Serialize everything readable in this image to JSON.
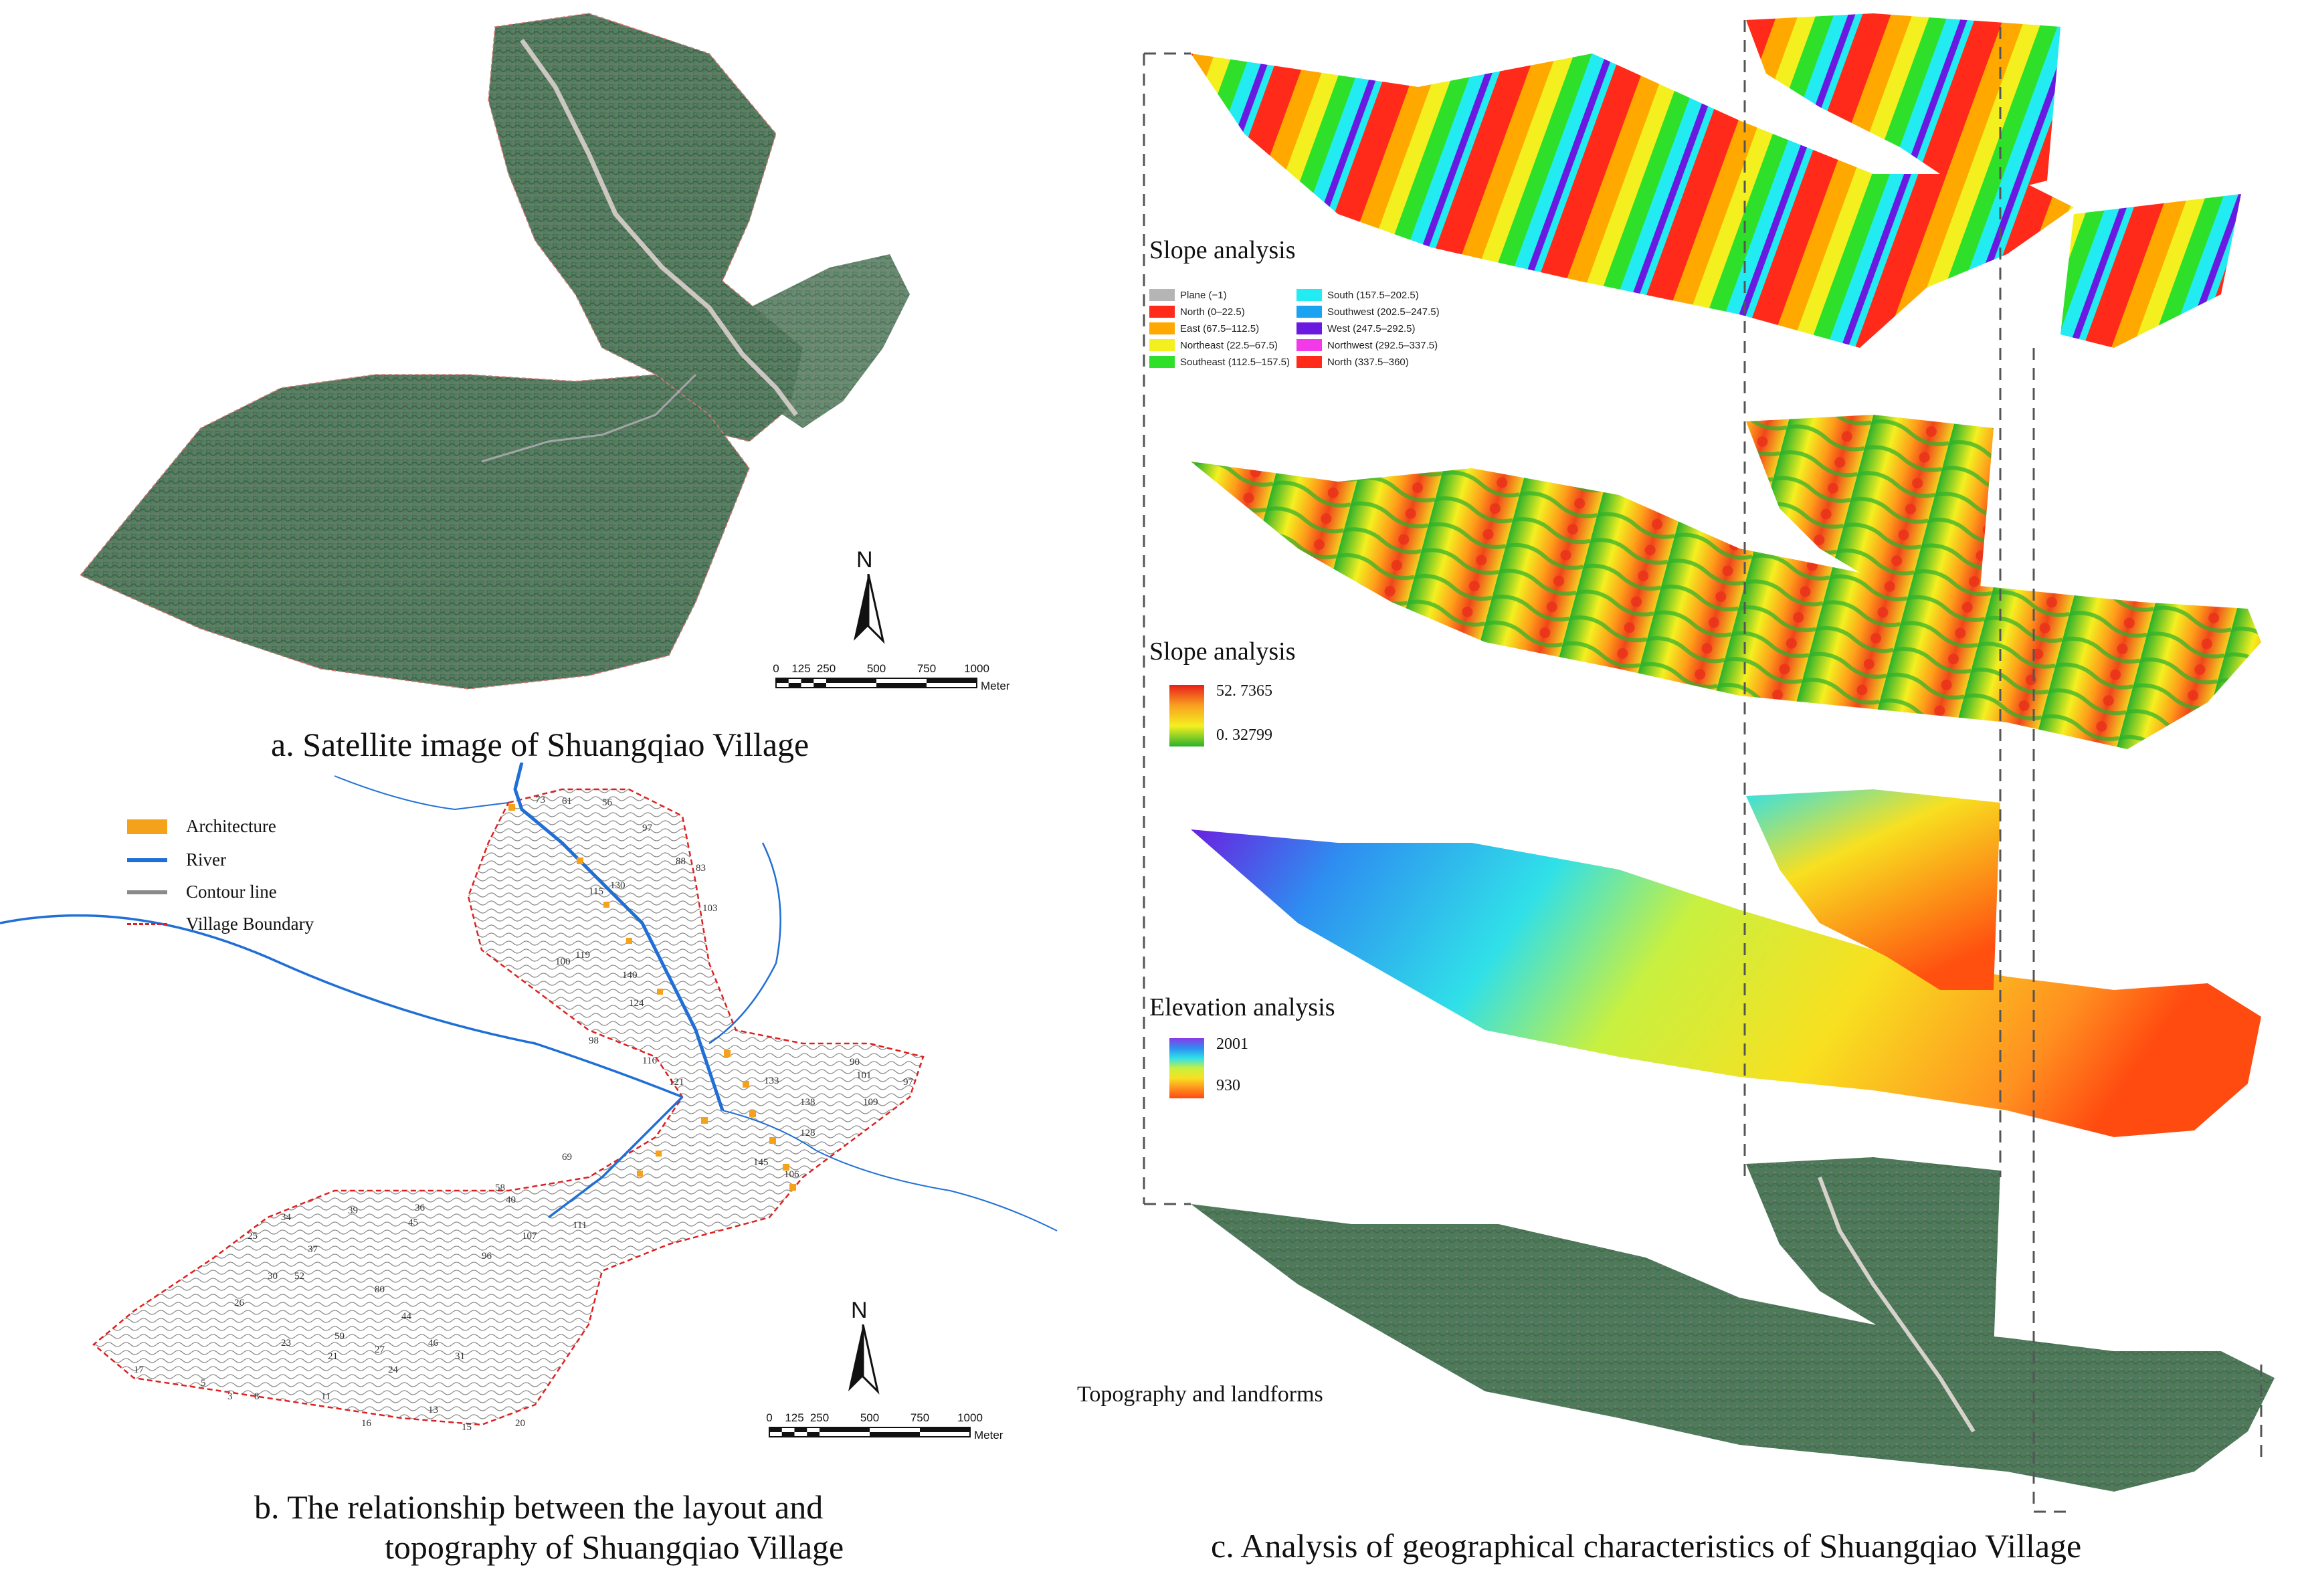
{
  "panel_a": {
    "caption": "a. Satellite image of Shuangqiao Village",
    "north_label": "N",
    "scale_labels": [
      "0",
      "125",
      "250",
      "500",
      "750",
      "1000"
    ],
    "scale_unit": "Meter"
  },
  "panel_b": {
    "caption_line1": "b. The relationship between the layout and",
    "caption_line2": "topography of Shuangqiao Village",
    "legend": [
      {
        "label": "Architecture",
        "color": "#f5a21b"
      },
      {
        "label": "River",
        "color": "#1f6fd6"
      },
      {
        "label": "Contour line",
        "color": "#8a8a8a"
      },
      {
        "label": "Village Boundary",
        "color": "#e02020"
      }
    ],
    "north_label": "N",
    "scale_labels": [
      "0",
      "125",
      "250",
      "500",
      "750",
      "1000"
    ],
    "scale_unit": "Meter",
    "contour_labels": [
      "73",
      "61",
      "56",
      "97",
      "103",
      "88",
      "83",
      "115",
      "130",
      "119",
      "100",
      "124",
      "140",
      "98",
      "116",
      "121",
      "90",
      "101",
      "109",
      "133",
      "128",
      "97",
      "145",
      "138",
      "106",
      "111",
      "107",
      "96",
      "69",
      "58",
      "40",
      "39",
      "36",
      "45",
      "34",
      "37",
      "30",
      "26",
      "23",
      "20",
      "16",
      "13",
      "15",
      "11",
      "8",
      "5",
      "3",
      "25",
      "52",
      "59",
      "80",
      "44",
      "21",
      "17",
      "46",
      "31",
      "27",
      "24"
    ]
  },
  "panel_c": {
    "caption": "c. Analysis of geographical characteristics of Shuangqiao Village",
    "aspect_title": "Slope analysis",
    "aspect_legend": [
      {
        "label": "Plane (−1)",
        "color": "#b5b5b5"
      },
      {
        "label": "North (0–22.5)",
        "color": "#ff2a1a"
      },
      {
        "label": "East (67.5–112.5)",
        "color": "#ffa800"
      },
      {
        "label": "Northeast (22.5–67.5)",
        "color": "#f4f020"
      },
      {
        "label": "Southeast (112.5–157.5)",
        "color": "#2ee02a"
      },
      {
        "label": "South (157.5–202.5)",
        "color": "#22ecf2"
      },
      {
        "label": "Southwest (202.5–247.5)",
        "color": "#1aa3f0"
      },
      {
        "label": "West (247.5–292.5)",
        "color": "#6a1ae0"
      },
      {
        "label": "Northwest (292.5–337.5)",
        "color": "#f23ae8"
      },
      {
        "label": "North (337.5–360)",
        "color": "#ff2a1a"
      }
    ],
    "slope_title": "Slope analysis",
    "slope_max": "52. 7365",
    "slope_min": "0. 32799",
    "elevation_title": "Elevation analysis",
    "elevation_max": "2001",
    "elevation_min": "930",
    "topography_title": "Topography and landforms"
  }
}
